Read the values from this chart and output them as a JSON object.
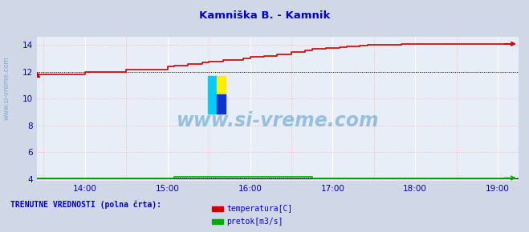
{
  "title": "Kamniška B. - Kamnik",
  "title_color": "#0000cc",
  "bg_color": "#d0d8e8",
  "plot_bg_color": "#e8eef8",
  "xlabel_color": "#0000aa",
  "ylabel_color": "#0000aa",
  "watermark": "www.si-vreme.com",
  "watermark_color": "#3388bb",
  "sidebar_text": "www.si-vreme.com",
  "sidebar_color": "#3388bb",
  "legend_title": "TRENUTNE VREDNOSTI (polna črta):",
  "legend_title_color": "#0000cc",
  "legend_items": [
    "temperatura[C]",
    "pretok[m3/s]"
  ],
  "legend_colors": [
    "#cc0000",
    "#00aa00"
  ],
  "xlim_start": 13.42,
  "xlim_end": 19.25,
  "ylim": [
    3.85,
    14.6
  ],
  "yticks": [
    4,
    6,
    8,
    10,
    12,
    14
  ],
  "xtick_labels_shown": [
    "14:00",
    "15:00",
    "16:00",
    "17:00",
    "18:00",
    "19:00"
  ],
  "xtick_positions_shown": [
    14.0,
    15.0,
    16.0,
    17.0,
    18.0,
    19.0
  ],
  "xtick_positions_minor": [
    13.5,
    14.5,
    15.5,
    16.5,
    17.5,
    18.5,
    19.5
  ],
  "temp_color": "#cc0000",
  "flow_color": "#00aa00",
  "level_color": "#0000cc",
  "dotted_y_temp": 12.0,
  "dotted_y_flow": 4.1,
  "temp_x": [
    13.42,
    13.5,
    13.58,
    13.67,
    13.75,
    13.83,
    13.92,
    14.0,
    14.08,
    14.17,
    14.25,
    14.33,
    14.42,
    14.5,
    14.5,
    14.58,
    14.67,
    14.75,
    14.83,
    14.92,
    15.0,
    15.0,
    15.08,
    15.17,
    15.25,
    15.33,
    15.42,
    15.5,
    15.5,
    15.58,
    15.67,
    15.75,
    15.83,
    15.92,
    16.0,
    16.0,
    16.08,
    16.17,
    16.25,
    16.33,
    16.42,
    16.5,
    16.5,
    16.58,
    16.67,
    16.75,
    16.75,
    16.83,
    16.92,
    17.0,
    17.08,
    17.17,
    17.25,
    17.33,
    17.42,
    17.5,
    17.58,
    17.67,
    17.75,
    17.83,
    17.92,
    18.0,
    18.08,
    18.17,
    18.25,
    18.33,
    18.42,
    18.5,
    18.58,
    18.67,
    18.75,
    18.83,
    18.92,
    19.0,
    19.08,
    19.17
  ],
  "temp_y": [
    11.8,
    11.8,
    11.8,
    11.8,
    11.8,
    11.8,
    11.8,
    12.0,
    12.0,
    12.0,
    12.0,
    12.0,
    12.0,
    12.0,
    12.2,
    12.2,
    12.2,
    12.2,
    12.2,
    12.2,
    12.4,
    12.4,
    12.5,
    12.5,
    12.6,
    12.6,
    12.7,
    12.7,
    12.8,
    12.8,
    12.9,
    12.9,
    12.9,
    13.0,
    13.0,
    13.1,
    13.1,
    13.2,
    13.2,
    13.3,
    13.3,
    13.4,
    13.5,
    13.5,
    13.6,
    13.6,
    13.7,
    13.7,
    13.8,
    13.8,
    13.85,
    13.9,
    13.9,
    13.95,
    14.0,
    14.0,
    14.0,
    14.05,
    14.05,
    14.1,
    14.1,
    14.1,
    14.1,
    14.1,
    14.1,
    14.1,
    14.1,
    14.1,
    14.1,
    14.1,
    14.1,
    14.1,
    14.1,
    14.1,
    14.1,
    14.1
  ],
  "flow_x": [
    13.42,
    13.5,
    13.6,
    13.7,
    13.8,
    13.9,
    14.0,
    14.1,
    14.2,
    14.3,
    14.4,
    14.5,
    14.6,
    14.7,
    14.8,
    14.9,
    15.0,
    15.08,
    15.17,
    15.25,
    15.33,
    15.42,
    15.5,
    15.58,
    15.67,
    15.75,
    15.83,
    15.92,
    16.0,
    16.08,
    16.17,
    16.25,
    16.33,
    16.42,
    16.5,
    16.58,
    16.67,
    16.72,
    16.75,
    16.83,
    16.92,
    17.0,
    17.08,
    17.17,
    17.25,
    17.33,
    17.42,
    17.5,
    17.58,
    17.67,
    17.75,
    17.83,
    17.92,
    18.0,
    18.08,
    18.17,
    18.25,
    18.33,
    18.42,
    18.5,
    18.58,
    18.67,
    18.75,
    18.83,
    18.92,
    19.0,
    19.08,
    19.17
  ],
  "flow_y": [
    4.07,
    4.07,
    4.07,
    4.07,
    4.07,
    4.07,
    4.07,
    4.07,
    4.07,
    4.07,
    4.07,
    4.07,
    4.07,
    4.07,
    4.07,
    4.07,
    4.07,
    4.17,
    4.17,
    4.17,
    4.17,
    4.17,
    4.17,
    4.17,
    4.17,
    4.17,
    4.17,
    4.17,
    4.17,
    4.17,
    4.17,
    4.17,
    4.17,
    4.17,
    4.17,
    4.17,
    4.17,
    4.17,
    4.07,
    4.07,
    4.07,
    4.07,
    4.07,
    4.07,
    4.07,
    4.07,
    4.07,
    4.07,
    4.07,
    4.07,
    4.07,
    4.07,
    4.07,
    4.07,
    4.07,
    4.07,
    4.07,
    4.07,
    4.07,
    4.07,
    4.07,
    4.07,
    4.07,
    4.07,
    4.07,
    4.07,
    4.07,
    4.07
  ],
  "level_y": 4.02,
  "arrow_color_temp": "#cc0000",
  "arrow_color_flow": "#00aa00"
}
